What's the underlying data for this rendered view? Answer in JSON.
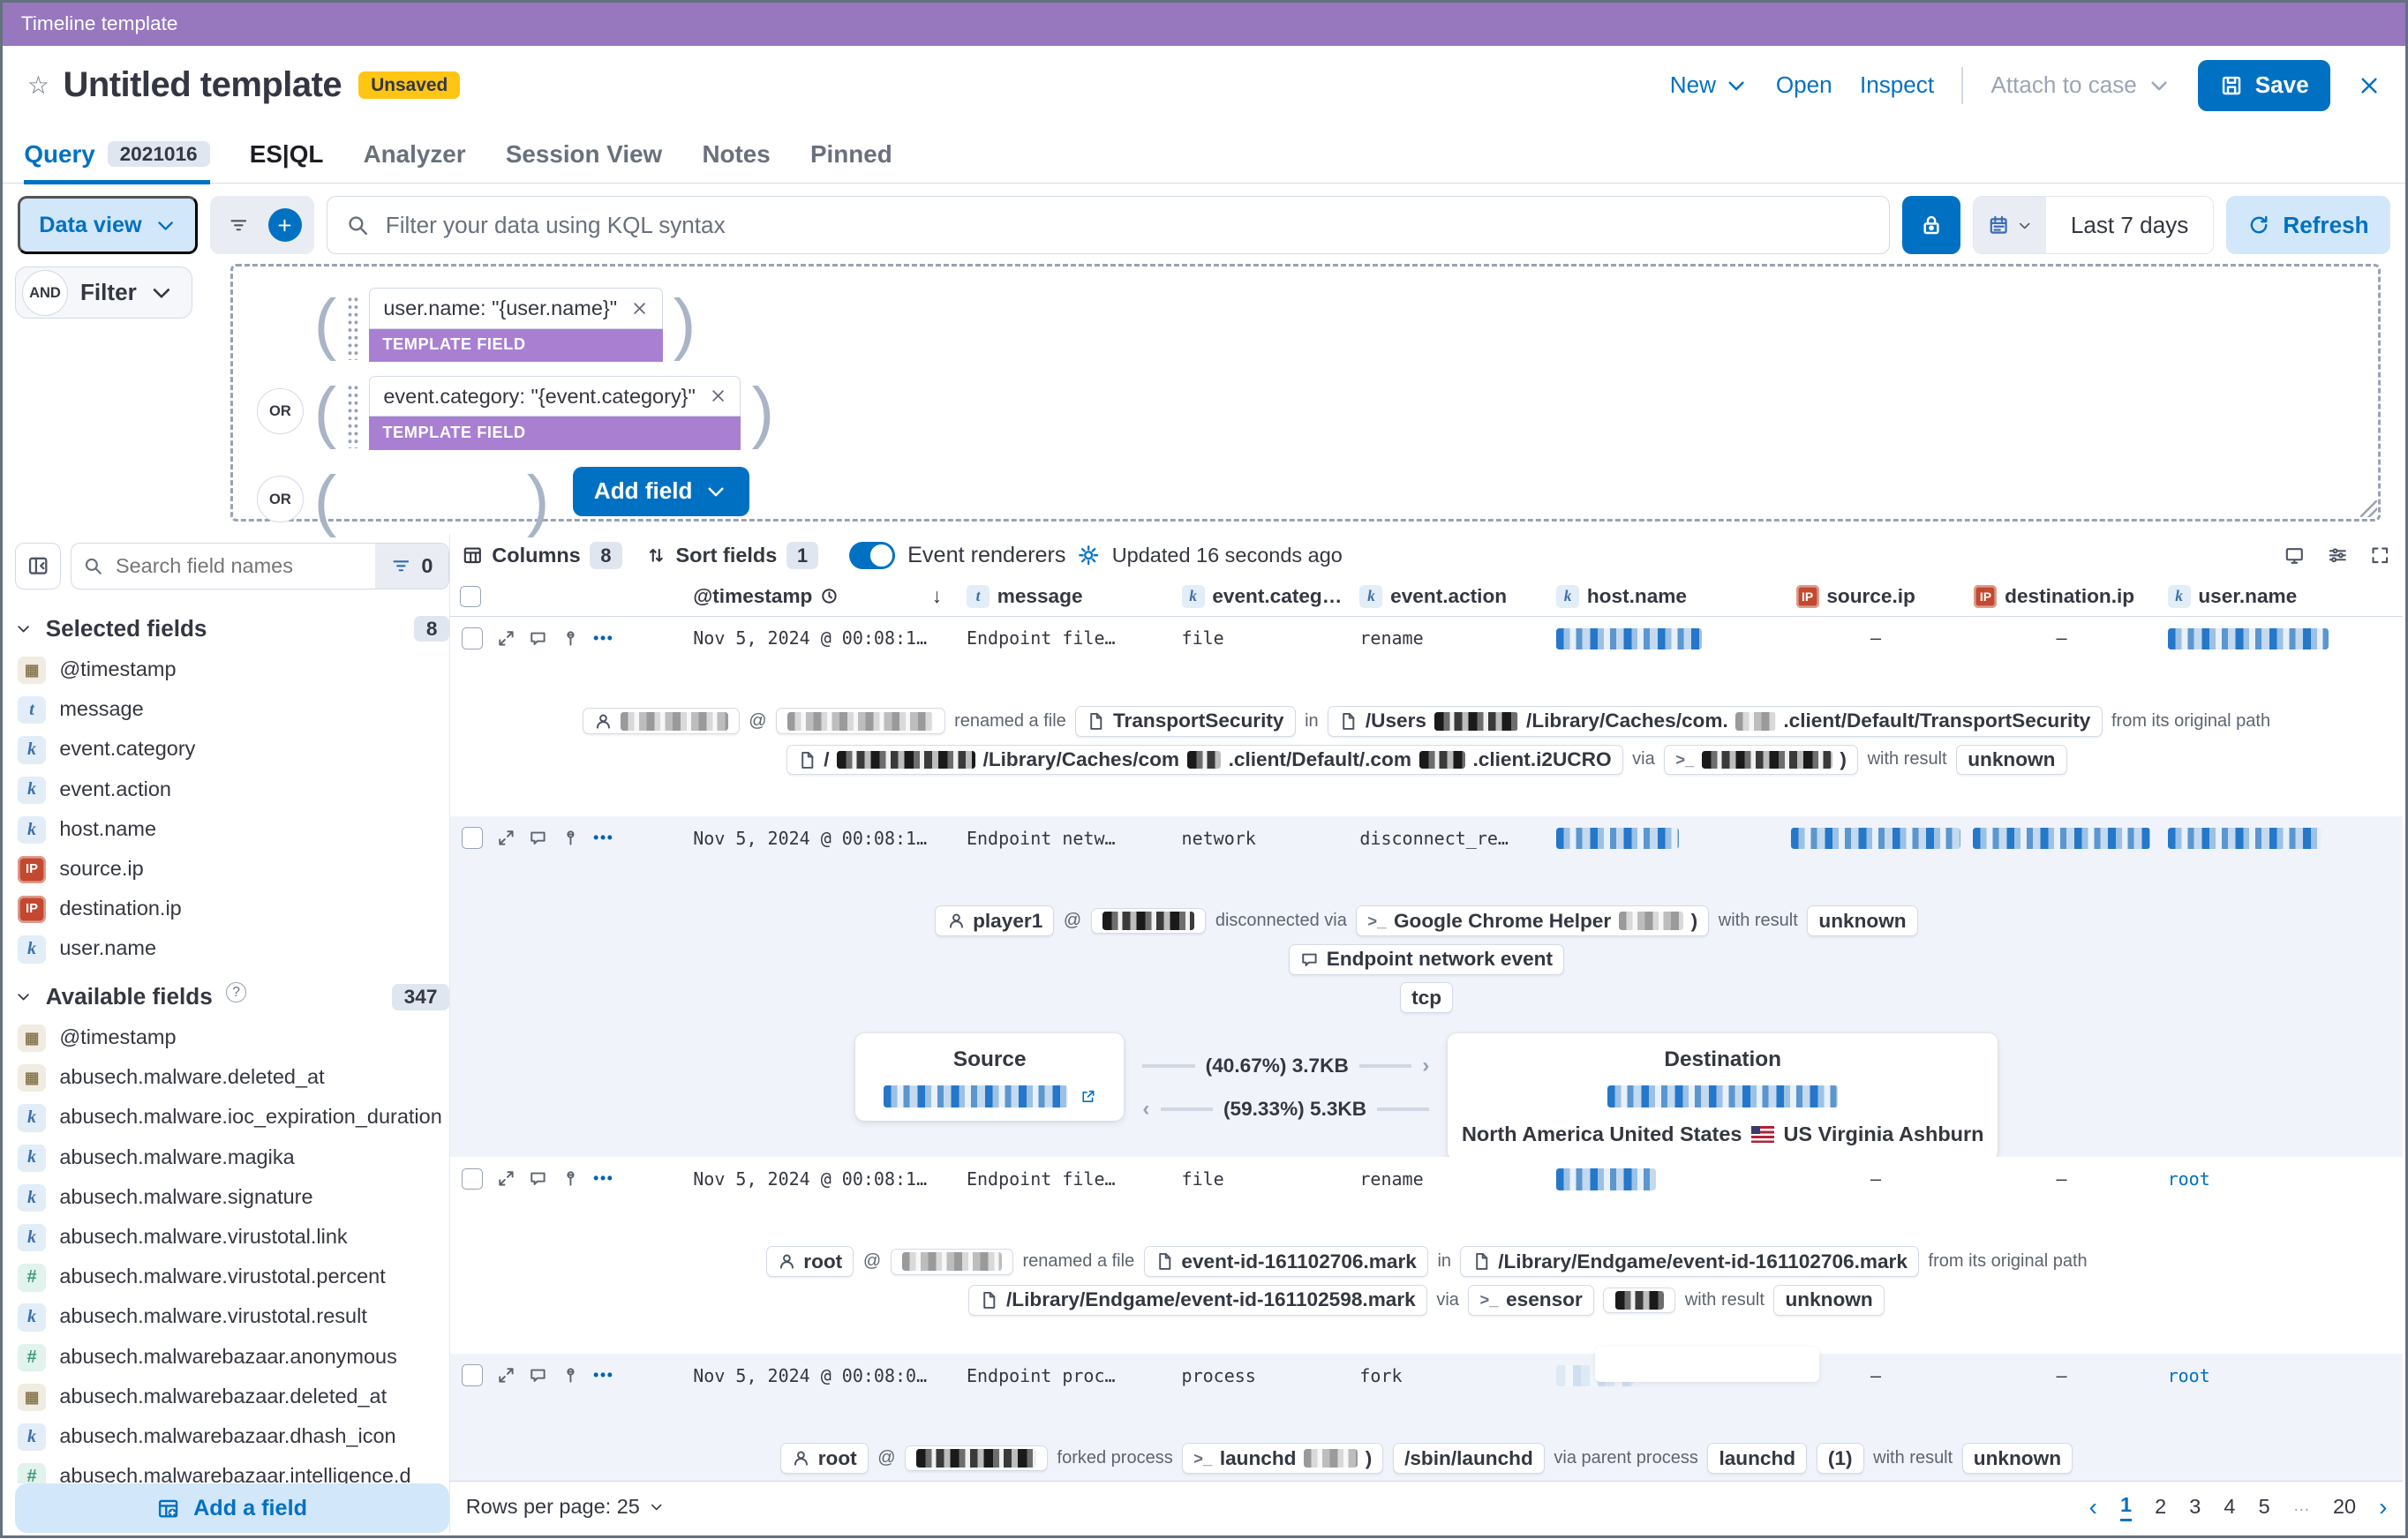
{
  "colors": {
    "accent": "#0071c2",
    "topbar_purple": "#9777be",
    "template_purple": "#a87fd1",
    "unsaved_yellow": "#fec514"
  },
  "topbar": {
    "title": "Timeline template"
  },
  "header": {
    "title": "Untitled template",
    "badge": "Unsaved",
    "actions": {
      "new": "New",
      "open": "Open",
      "inspect": "Inspect",
      "attach": "Attach to case",
      "save": "Save"
    }
  },
  "tabs": [
    {
      "label": "Query",
      "badge": "2021016",
      "state": "active"
    },
    {
      "label": "ES|QL",
      "state": "dark"
    },
    {
      "label": "Analyzer",
      "state": ""
    },
    {
      "label": "Session View",
      "state": ""
    },
    {
      "label": "Notes",
      "state": ""
    },
    {
      "label": "Pinned",
      "state": ""
    }
  ],
  "filterbar": {
    "data_view": "Data view",
    "kql_placeholder": "Filter your data using KQL syntax",
    "time_range": "Last 7 days",
    "refresh": "Refresh"
  },
  "querybuilder": {
    "and_label": "AND",
    "filter_label": "Filter",
    "or_label": "OR",
    "template_field_label": "TEMPLATE FIELD",
    "add_field": "Add field",
    "chips": [
      {
        "text": "user.name: \"{user.name}\""
      },
      {
        "text": "event.category: \"{event.category}\""
      }
    ]
  },
  "sidebar": {
    "search_placeholder": "Search field names",
    "filter_count": "0",
    "selected": {
      "title": "Selected fields",
      "count": "8",
      "items": [
        {
          "icon": "date",
          "label": "@timestamp"
        },
        {
          "icon": "text",
          "label": "message"
        },
        {
          "icon": "keyword",
          "label": "event.category"
        },
        {
          "icon": "keyword",
          "label": "event.action"
        },
        {
          "icon": "keyword",
          "label": "host.name"
        },
        {
          "icon": "ip",
          "label": "source.ip"
        },
        {
          "icon": "ip",
          "label": "destination.ip"
        },
        {
          "icon": "keyword",
          "label": "user.name"
        }
      ]
    },
    "available": {
      "title": "Available fields",
      "count": "347",
      "items": [
        {
          "icon": "date",
          "label": "@timestamp"
        },
        {
          "icon": "date",
          "label": "abusech.malware.deleted_at"
        },
        {
          "icon": "keyword",
          "label": "abusech.malware.ioc_expiration_duration"
        },
        {
          "icon": "keyword",
          "label": "abusech.malware.magika"
        },
        {
          "icon": "keyword",
          "label": "abusech.malware.signature"
        },
        {
          "icon": "keyword",
          "label": "abusech.malware.virustotal.link"
        },
        {
          "icon": "number",
          "label": "abusech.malware.virustotal.percent"
        },
        {
          "icon": "keyword",
          "label": "abusech.malware.virustotal.result"
        },
        {
          "icon": "number",
          "label": "abusech.malwarebazaar.anonymous"
        },
        {
          "icon": "date",
          "label": "abusech.malwarebazaar.deleted_at"
        },
        {
          "icon": "keyword",
          "label": "abusech.malwarebazaar.dhash_icon"
        },
        {
          "icon": "number",
          "label": "abusech.malwarebazaar.intelligence.d"
        }
      ]
    },
    "add_field": "Add a field"
  },
  "table": {
    "toolbar": {
      "columns_label": "Columns",
      "columns_count": "8",
      "sort_label": "Sort fields",
      "sort_count": "1",
      "renderers_label": "Event renderers",
      "updated": "Updated 16 seconds ago"
    },
    "columns": [
      {
        "label": "@timestamp",
        "icon": "clock",
        "sort": "↓"
      },
      {
        "label": "message",
        "type": "text"
      },
      {
        "label": "event.categ…",
        "type": "keyword"
      },
      {
        "label": "event.action",
        "type": "keyword"
      },
      {
        "label": "host.name",
        "type": "keyword"
      },
      {
        "label": "source.ip",
        "type": "ip"
      },
      {
        "label": "destination.ip",
        "type": "ip"
      },
      {
        "label": "user.name",
        "type": "keyword"
      }
    ],
    "rows": [
      {
        "ts": "Nov 5, 2024 @ 00:08:1…",
        "msg": "Endpoint file…",
        "cat": "file",
        "act": "rename",
        "host": {
          "px": 95,
          "c": "blue"
        },
        "src": "–",
        "dst": "–",
        "usr": {
          "px": 105,
          "c": "blue"
        },
        "lines": [
          [
            {
              "t": "chip",
              "icon": "user",
              "parts": [
                {
                  "px": 70,
                  "c": "grey"
                }
              ]
            },
            {
              "t": "tx",
              "v": "@"
            },
            {
              "t": "chip",
              "parts": [
                {
                  "px": 95,
                  "c": "grey"
                }
              ]
            },
            {
              "t": "tx",
              "v": "renamed a file"
            },
            {
              "t": "chip",
              "icon": "file",
              "parts": [
                {
                  "tx": "TransportSecurity"
                }
              ]
            },
            {
              "t": "tx",
              "v": "in"
            },
            {
              "t": "chip",
              "icon": "file",
              "parts": [
                {
                  "tx": "/Users"
                },
                {
                  "px": 55,
                  "c": "dark"
                },
                {
                  "tx": "/Library/Caches/com."
                },
                {
                  "px": 26,
                  "c": "grey"
                },
                {
                  "tx": ".client/Default/TransportSecurity"
                }
              ]
            },
            {
              "t": "tx",
              "v": "from its original path"
            }
          ],
          [
            {
              "t": "chip",
              "icon": "file",
              "parts": [
                {
                  "tx": "/"
                },
                {
                  "px": 90,
                  "c": "dark"
                },
                {
                  "tx": "/Library/Caches/com"
                },
                {
                  "px": 22,
                  "c": "dark"
                },
                {
                  "tx": ".client/Default/.com"
                },
                {
                  "px": 30,
                  "c": "dark"
                },
                {
                  "tx": ".client.i2UCRO"
                }
              ]
            },
            {
              "t": "tx",
              "v": "via"
            },
            {
              "t": "chip",
              "icon": "terminal",
              "parts": [
                {
                  "px": 85,
                  "c": "dark"
                },
                {
                  "tx": ")"
                }
              ]
            },
            {
              "t": "tx",
              "v": "with result"
            },
            {
              "t": "chip",
              "parts": [
                {
                  "tx": "unknown"
                }
              ]
            }
          ]
        ]
      },
      {
        "ts": "Nov 5, 2024 @ 00:08:1…",
        "msg": "Endpoint netw…",
        "cat": "network",
        "act": "disconnect_re…",
        "host": {
          "px": 80,
          "c": "blue"
        },
        "src": {
          "px": 110,
          "c": "blue"
        },
        "dst": {
          "px": 115,
          "c": "blue"
        },
        "usr": {
          "px": 100,
          "c": "blue"
        },
        "lines": [
          [
            {
              "t": "chip",
              "icon": "user",
              "parts": [
                {
                  "tx": "player1"
                }
              ]
            },
            {
              "t": "tx",
              "v": "@"
            },
            {
              "t": "chip",
              "parts": [
                {
                  "px": 60,
                  "c": "dark"
                }
              ]
            },
            {
              "t": "tx",
              "v": "disconnected via"
            },
            {
              "t": "chip",
              "icon": "terminal",
              "parts": [
                {
                  "tx": "Google Chrome Helper"
                },
                {
                  "px": 42,
                  "c": "grey"
                },
                {
                  "tx": ")"
                }
              ]
            },
            {
              "t": "tx",
              "v": "with result"
            },
            {
              "t": "chip",
              "parts": [
                {
                  "tx": "unknown"
                }
              ]
            }
          ],
          [
            {
              "t": "chip",
              "icon": "comment",
              "parts": [
                {
                  "tx": "Endpoint network event"
                }
              ]
            }
          ],
          [
            {
              "t": "chip",
              "parts": [
                {
                  "tx": "tcp"
                }
              ]
            }
          ]
        ],
        "network": {
          "source_title": "Source",
          "dest_title": "Destination",
          "sent": "(40.67%) 3.7KB",
          "received": "(59.33%) 5.3KB",
          "dest_location_1": "North America United States",
          "dest_location_2": "US Virginia Ashburn"
        }
      },
      {
        "ts": "Nov 5, 2024 @ 00:08:1…",
        "msg": "Endpoint file…",
        "cat": "file",
        "act": "rename",
        "host": {
          "px": 65,
          "c": "blue"
        },
        "src": "–",
        "dst": "–",
        "usr": {
          "link": "root"
        },
        "lines": [
          [
            {
              "t": "chip",
              "icon": "user",
              "parts": [
                {
                  "tx": "root"
                }
              ]
            },
            {
              "t": "tx",
              "v": "@"
            },
            {
              "t": "chip",
              "parts": [
                {
                  "px": 65,
                  "c": "grey"
                }
              ]
            },
            {
              "t": "tx",
              "v": "renamed a file"
            },
            {
              "t": "chip",
              "icon": "file",
              "parts": [
                {
                  "tx": "event-id-161102706.mark"
                }
              ]
            },
            {
              "t": "tx",
              "v": "in"
            },
            {
              "t": "chip",
              "icon": "file",
              "parts": [
                {
                  "tx": "/Library/Endgame/event-id-161102706.mark"
                }
              ]
            },
            {
              "t": "tx",
              "v": "from its original path"
            }
          ],
          [
            {
              "t": "chip",
              "icon": "file",
              "parts": [
                {
                  "tx": "/Library/Endgame/event-id-161102598.mark"
                }
              ]
            },
            {
              "t": "tx",
              "v": "via"
            },
            {
              "t": "chip",
              "icon": "terminal",
              "parts": [
                {
                  "tx": "esensor"
                }
              ]
            },
            {
              "t": "chip",
              "parts": [
                {
                  "px": 32,
                  "c": "dark"
                }
              ]
            },
            {
              "t": "tx",
              "v": "with result"
            },
            {
              "t": "chip",
              "parts": [
                {
                  "tx": "unknown"
                }
              ]
            }
          ]
        ]
      },
      {
        "ts": "Nov 5, 2024 @ 00:08:0…",
        "msg": "Endpoint proc…",
        "cat": "process",
        "act": "fork",
        "host": {
          "px": 50,
          "c": "faint"
        },
        "src": "–",
        "dst": "–",
        "usr": {
          "link": "root"
        },
        "lines": [
          [
            {
              "t": "chip",
              "icon": "user",
              "parts": [
                {
                  "tx": "root"
                }
              ]
            },
            {
              "t": "tx",
              "v": "@"
            },
            {
              "t": "chip",
              "parts": [
                {
                  "px": 78,
                  "c": "dark"
                }
              ]
            },
            {
              "t": "tx",
              "v": "forked process"
            },
            {
              "t": "chip",
              "icon": "terminal",
              "parts": [
                {
                  "tx": "launchd"
                },
                {
                  "px": 35,
                  "c": "grey"
                },
                {
                  "tx": ")"
                }
              ]
            },
            {
              "t": "chip",
              "parts": [
                {
                  "tx": "/sbin/launchd"
                }
              ]
            },
            {
              "t": "tx",
              "v": "via parent process"
            },
            {
              "t": "chip",
              "parts": [
                {
                  "tx": "launchd"
                }
              ]
            },
            {
              "t": "chip",
              "parts": [
                {
                  "tx": "(1)"
                }
              ]
            },
            {
              "t": "tx",
              "v": "with result"
            },
            {
              "t": "chip",
              "parts": [
                {
                  "tx": "unknown"
                }
              ]
            }
          ]
        ]
      }
    ]
  },
  "footer": {
    "rows_per_page": "Rows per page: 25",
    "pages": [
      "1",
      "2",
      "3",
      "4",
      "5",
      "…",
      "20"
    ],
    "active_page": "1"
  }
}
